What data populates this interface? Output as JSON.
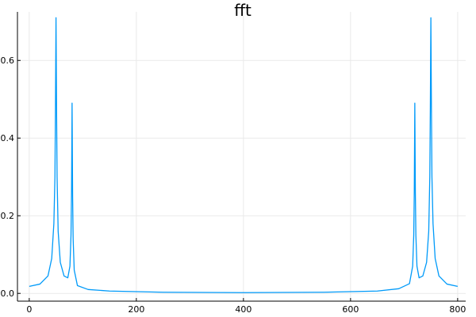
{
  "chart_data": {
    "type": "line",
    "title": "fft",
    "xlabel": "",
    "ylabel": "",
    "xlim": [
      -22,
      815
    ],
    "ylim": [
      -0.02,
      0.725
    ],
    "x_ticks": [
      0,
      200,
      400,
      600,
      800
    ],
    "x_tick_labels": [
      "0",
      "200",
      "400",
      "600",
      "800"
    ],
    "y_ticks": [
      0.0,
      0.2,
      0.4,
      0.6
    ],
    "y_tick_labels": [
      "0.0",
      "0.2",
      "0.4",
      "0.6"
    ],
    "grid": true,
    "legend": "none",
    "series": [
      {
        "color": "#009af9",
        "peaks": [
          {
            "x": 50,
            "amplitude": 0.71
          },
          {
            "x": 80,
            "amplitude": 0.49
          },
          {
            "x": 720,
            "amplitude": 0.49
          },
          {
            "x": 750,
            "amplitude": 0.71
          }
        ],
        "x": [
          0,
          20,
          35,
          42,
          46,
          48,
          49,
          50,
          51,
          52,
          54,
          58,
          65,
          72,
          76,
          78,
          79,
          80,
          81,
          82,
          84,
          90,
          110,
          150,
          250,
          400,
          550,
          650,
          690,
          710,
          716,
          718,
          719,
          720,
          721,
          722,
          724,
          728,
          735,
          742,
          746,
          748,
          749,
          750,
          751,
          752,
          754,
          758,
          765,
          780,
          800
        ],
        "y": [
          0.018,
          0.024,
          0.045,
          0.09,
          0.18,
          0.3,
          0.48,
          0.71,
          0.48,
          0.3,
          0.16,
          0.08,
          0.045,
          0.04,
          0.07,
          0.15,
          0.26,
          0.49,
          0.25,
          0.14,
          0.06,
          0.02,
          0.01,
          0.006,
          0.003,
          0.002,
          0.003,
          0.006,
          0.012,
          0.025,
          0.07,
          0.15,
          0.26,
          0.49,
          0.26,
          0.15,
          0.07,
          0.04,
          0.045,
          0.08,
          0.16,
          0.3,
          0.48,
          0.71,
          0.48,
          0.3,
          0.18,
          0.09,
          0.045,
          0.024,
          0.018
        ]
      }
    ]
  }
}
